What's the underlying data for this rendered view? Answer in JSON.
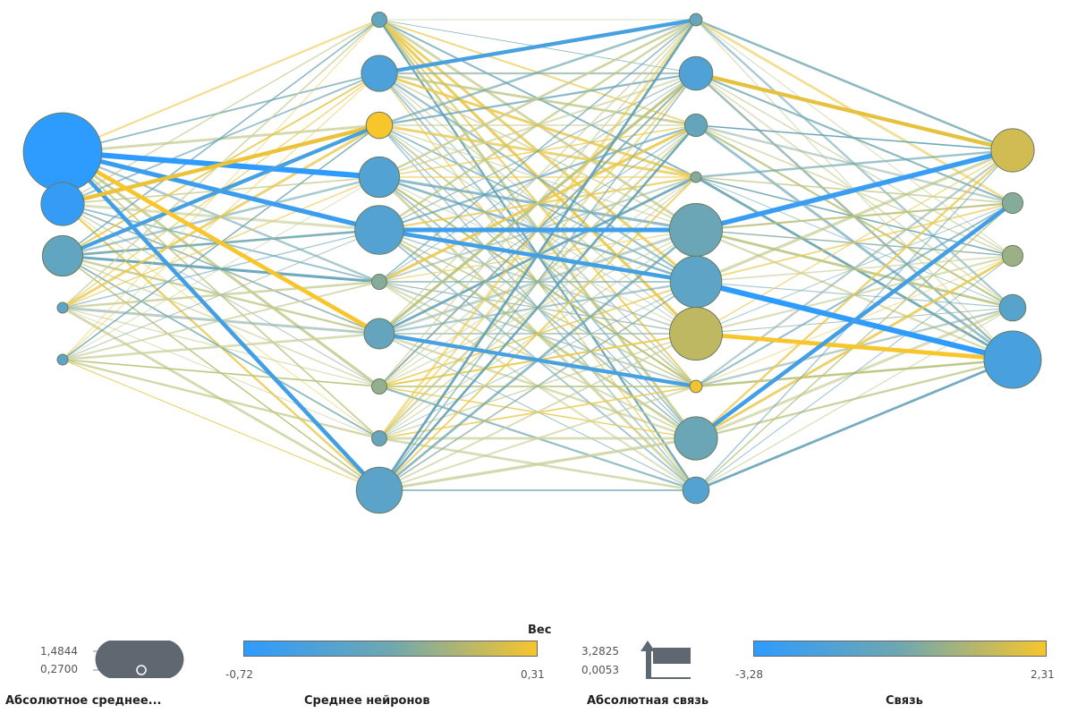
{
  "colors": {
    "negative": "#2e9bff",
    "mid": "#6fa7b0",
    "positive": "#f7c52c"
  },
  "network": {
    "layers": [
      {
        "neurons": [
          -0.72,
          -0.64,
          -0.15,
          -0.2,
          -0.2
        ]
      },
      {
        "neurons": [
          -0.15,
          -0.38,
          0.31,
          -0.32,
          -0.3,
          0.05,
          -0.12,
          0.08,
          -0.1,
          -0.22
        ]
      },
      {
        "neurons": [
          -0.1,
          -0.35,
          -0.12,
          0.05,
          -0.05,
          -0.2,
          0.18,
          0.3,
          -0.05,
          -0.3
        ]
      },
      {
        "neurons": [
          0.22,
          0.05,
          0.1,
          -0.25,
          -0.42
        ]
      }
    ],
    "neuron_abs_mean": {
      "layer0": [
        1.48,
        0.85,
        0.8,
        0.27,
        0.27
      ],
      "layer1": [
        0.35,
        0.72,
        0.55,
        0.8,
        0.95,
        0.35,
        0.62,
        0.35,
        0.35,
        0.9
      ],
      "layer2": [
        0.3,
        0.68,
        0.48,
        0.27,
        1.02,
        1.0,
        1.02,
        0.3,
        0.85,
        0.55
      ],
      "layer3": [
        0.85,
        0.45,
        0.45,
        0.55,
        1.1
      ]
    },
    "highlight_links": [
      {
        "from": [
          0,
          0
        ],
        "to": [
          1,
          3
        ],
        "value": -3.28
      },
      {
        "from": [
          0,
          0
        ],
        "to": [
          1,
          4
        ],
        "value": -2.6
      },
      {
        "from": [
          0,
          0
        ],
        "to": [
          1,
          9
        ],
        "value": -2.2
      },
      {
        "from": [
          0,
          1
        ],
        "to": [
          1,
          2
        ],
        "value": 2.1
      },
      {
        "from": [
          0,
          2
        ],
        "to": [
          1,
          2
        ],
        "value": -2.0
      },
      {
        "from": [
          0,
          0
        ],
        "to": [
          1,
          6
        ],
        "value": 2.31
      },
      {
        "from": [
          1,
          4
        ],
        "to": [
          2,
          4
        ],
        "value": -2.5
      },
      {
        "from": [
          1,
          4
        ],
        "to": [
          2,
          5
        ],
        "value": -2.2
      },
      {
        "from": [
          1,
          6
        ],
        "to": [
          2,
          7
        ],
        "value": -2.0
      },
      {
        "from": [
          1,
          1
        ],
        "to": [
          2,
          0
        ],
        "value": -2.0
      },
      {
        "from": [
          2,
          5
        ],
        "to": [
          3,
          4
        ],
        "value": -3.28
      },
      {
        "from": [
          2,
          4
        ],
        "to": [
          3,
          0
        ],
        "value": -2.8
      },
      {
        "from": [
          2,
          6
        ],
        "to": [
          3,
          4
        ],
        "value": 2.31
      },
      {
        "from": [
          2,
          8
        ],
        "to": [
          3,
          1
        ],
        "value": -2.2
      },
      {
        "from": [
          2,
          1
        ],
        "to": [
          3,
          0
        ],
        "value": 2.0
      }
    ]
  },
  "legend": {
    "weight_header": "Вес",
    "abs_mean": {
      "title": "Абсолютное среднее...",
      "max": "1,4844",
      "min": "0,2700"
    },
    "neuron_mean": {
      "title": "Среднее нейронов",
      "min": "-0,72",
      "max": "0,31"
    },
    "abs_link": {
      "title": "Абсолютная связь",
      "max": "3,2825",
      "min": "0,0053"
    },
    "link": {
      "title": "Связь",
      "min": "-3,28",
      "max": "2,31"
    }
  }
}
